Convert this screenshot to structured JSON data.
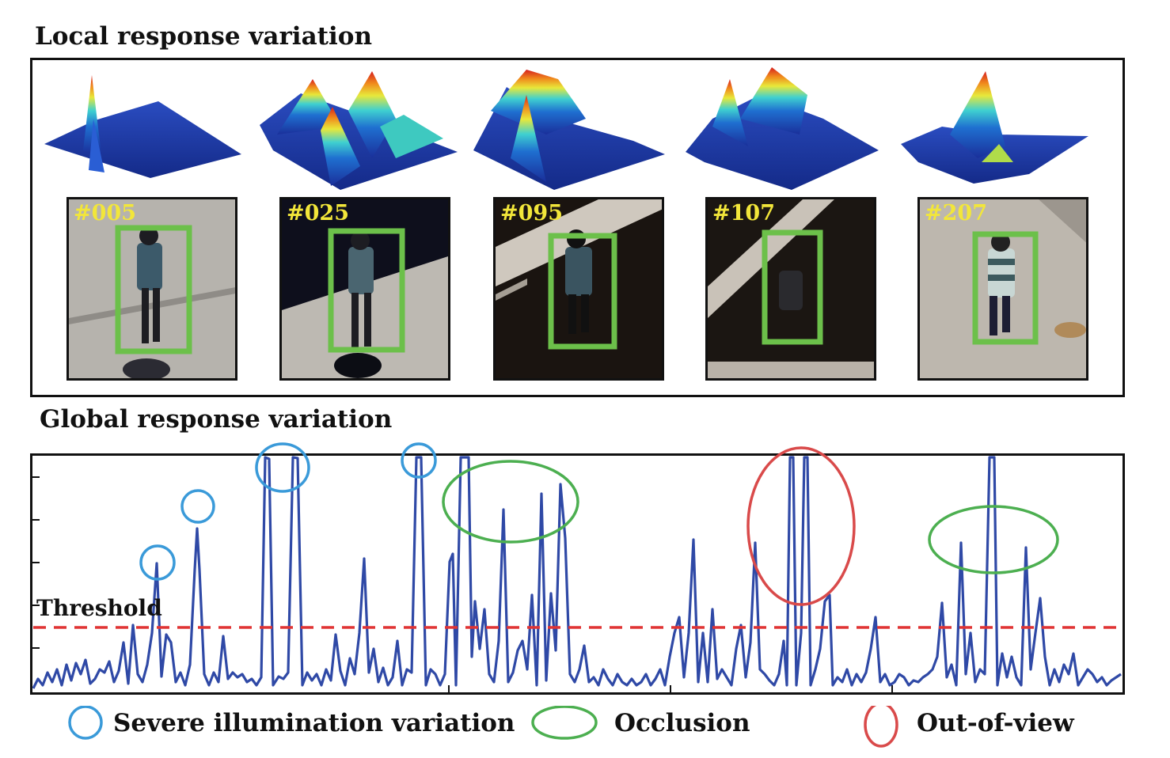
{
  "titles": {
    "local": "Local response variation",
    "global": "Global response variation"
  },
  "frames": [
    {
      "id": "#005"
    },
    {
      "id": "#025"
    },
    {
      "id": "#095"
    },
    {
      "id": "#107"
    },
    {
      "id": "#207"
    }
  ],
  "threshold_label": "Threshold",
  "legend": {
    "illumination": "Severe illumination variation",
    "occlusion": "Occlusion",
    "out_of_view": "Out-of-view"
  },
  "colors": {
    "response_line": "#2f49a6",
    "threshold_line": "#e03434",
    "illumination": "#3a9ad9",
    "occlusion": "#4caf50",
    "out_of_view": "#d94a4a",
    "bbox": "#6cc04a",
    "frame_id": "#f2e63a"
  }
}
